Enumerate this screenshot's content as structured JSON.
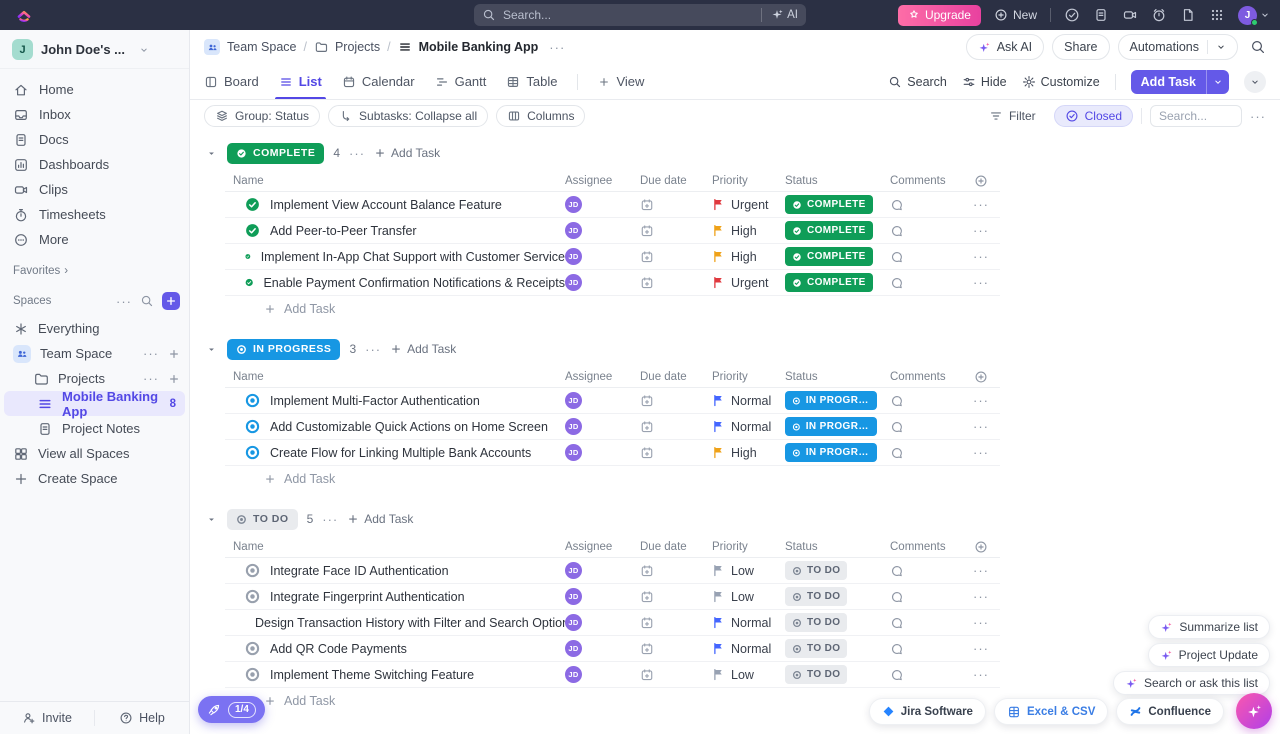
{
  "topbar": {
    "search_placeholder": "Search...",
    "ai_label": "AI",
    "upgrade_label": "Upgrade",
    "new_label": "New",
    "avatar_initial": "J"
  },
  "sidebar": {
    "workspace_initial": "J",
    "workspace_name": "John Doe's ...",
    "nav": [
      "Home",
      "Inbox",
      "Docs",
      "Dashboards",
      "Clips",
      "Timesheets",
      "More"
    ],
    "favorites_label": "Favorites",
    "spaces_label": "Spaces",
    "everything_label": "Everything",
    "team_space_label": "Team Space",
    "projects_label": "Projects",
    "list_label": "Mobile Banking App",
    "list_badge": "8",
    "notes_label": "Project Notes",
    "view_all_label": "View all Spaces",
    "create_space_label": "Create Space",
    "invite_label": "Invite",
    "help_label": "Help"
  },
  "breadcrumb": {
    "items": [
      "Team Space",
      "Projects",
      "Mobile Banking App"
    ],
    "separator": "/"
  },
  "header_actions": {
    "ask_ai": "Ask AI",
    "share": "Share",
    "automations": "Automations"
  },
  "tabs": {
    "items": [
      "Board",
      "List",
      "Calendar",
      "Gantt",
      "Table"
    ],
    "active": "List",
    "view_label": "View"
  },
  "view_bar": {
    "search": "Search",
    "hide": "Hide",
    "customize": "Customize",
    "add_task": "Add Task"
  },
  "toolbar": {
    "group": "Group: Status",
    "subtasks": "Subtasks: Collapse all",
    "columns": "Columns",
    "filter": "Filter",
    "closed": "Closed",
    "search_placeholder": "Search..."
  },
  "table": {
    "columns": [
      "Name",
      "Assignee",
      "Due date",
      "Priority",
      "Status",
      "Comments"
    ]
  },
  "labels": {
    "add_task": "Add Task"
  },
  "assignee": {
    "initials": "JD"
  },
  "colors": {
    "brand": "#5348e5",
    "complete": "#0f9d58",
    "in_progress": "#1797e3",
    "todo_bg": "#e9ebee",
    "todo_text": "#5d6574",
    "todo_icon": "#7d8694",
    "row_todo_icon": "#98a0ad",
    "assignee": "#8c6ae4",
    "priority": {
      "Urgent": "#e0393f",
      "High": "#efa219",
      "Normal": "#4466ff",
      "Low": "#98a2b3"
    }
  },
  "groups": [
    {
      "type": "complete",
      "label": "COMPLETE",
      "count": "4",
      "pill_bg": "#0f9d58",
      "pill_text": "#ffffff",
      "tasks": [
        {
          "name": "Implement View Account Balance Feature",
          "priority": "Urgent"
        },
        {
          "name": "Add Peer-to-Peer Transfer",
          "priority": "High"
        },
        {
          "name": "Implement In-App Chat Support with Customer Service",
          "priority": "High"
        },
        {
          "name": "Enable Payment Confirmation Notifications & Receipts",
          "priority": "Urgent"
        }
      ]
    },
    {
      "type": "in_progress",
      "label": "IN PROGRESS",
      "count": "3",
      "pill_bg": "#1797e3",
      "pill_text": "#ffffff",
      "tasks": [
        {
          "name": "Implement Multi-Factor Authentication",
          "priority": "Normal"
        },
        {
          "name": "Add Customizable Quick Actions on Home Screen",
          "priority": "Normal"
        },
        {
          "name": "Create Flow for Linking Multiple Bank Accounts",
          "priority": "High"
        }
      ]
    },
    {
      "type": "todo",
      "label": "TO DO",
      "count": "5",
      "pill_bg": "#e9ebee",
      "pill_text": "#5d6574",
      "tasks": [
        {
          "name": "Integrate Face ID Authentication",
          "priority": "Low"
        },
        {
          "name": "Integrate Fingerprint Authentication",
          "priority": "Low"
        },
        {
          "name": "Design Transaction History with Filter and Search Options",
          "priority": "Normal"
        },
        {
          "name": "Add QR Code Payments",
          "priority": "Normal"
        },
        {
          "name": "Implement Theme Switching Feature",
          "priority": "Low"
        }
      ]
    }
  ],
  "floating": {
    "summarize": "Summarize list",
    "project_update": "Project Update",
    "search_list": "Search or ask this list",
    "progress": "1/4"
  },
  "integrations": [
    "Jira Software",
    "Excel & CSV",
    "Confluence"
  ]
}
